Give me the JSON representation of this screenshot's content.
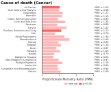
{
  "chart_data": {
    "type": "bar",
    "orientation": "horizontal",
    "title": "Cause of death (Cancer)",
    "x_label": "Proportionate Mortality Ratio (PMR)",
    "categories": [
      "All Cancer",
      "Oral Cavity and Pharynx",
      "Esophagus",
      "Stomach",
      "Colon, Rectum and Anus",
      "Liver and Bile Duct",
      "Pancreas",
      "Larynx",
      "Trachea, Bronchus and Lung",
      "Skin",
      "Other Respiratory",
      "Mesothelioma",
      "Kidney",
      "Bladder",
      "Brain",
      "Prostate",
      "Breast",
      "Hodgkin's Disease",
      "Non-Hodgkin's Lymphoma",
      "Multiple Myeloma",
      "Leukemia",
      "Lymphatic and Hematopoietic",
      "Others"
    ],
    "series": [
      {
        "name": "Non-sig",
        "color": "#ffb3b3",
        "values": [
          null,
          0.98,
          1.21,
          1.15,
          0.93,
          1.35,
          0.88,
          1.42,
          null,
          0.76,
          1.3,
          1.6,
          0.95,
          1.1,
          0.82,
          1.05,
          0.7,
          0.65,
          0.97,
          1.18,
          0.9,
          0.94,
          1.08
        ],
        "value_labels": [
          null,
          "PMR = 0.98",
          "PMR = 1.21",
          "PMR = 1.15",
          "PMR = 0.93",
          "PMR = 1.35",
          "PMR = 0.88",
          "PMR = 1.42",
          null,
          "PMR = 0.76",
          "PMR = 1.30",
          "PMR = 1.60",
          "PMR = 0.95",
          "PMR = 1.10",
          "PMR = 0.82",
          "PMR = 1.05",
          "PMR = 0.70",
          "PMR = 0.65",
          "PMR = 0.97",
          "PMR = 1.18",
          "PMR = 0.90",
          "PMR = 0.94",
          "PMR = 1.08"
        ]
      },
      {
        "name": "p<0.05",
        "color": "#ff6060",
        "values": [
          1.03,
          null,
          null,
          null,
          null,
          null,
          null,
          null,
          1.12,
          null,
          null,
          null,
          null,
          null,
          null,
          null,
          null,
          null,
          null,
          null,
          null,
          null,
          null
        ],
        "value_labels": [
          "PMR = 1.03",
          null,
          null,
          null,
          null,
          null,
          null,
          null,
          "PMR = 1.12",
          null,
          null,
          null,
          null,
          null,
          null,
          null,
          null,
          null,
          null,
          null,
          null,
          null,
          null
        ]
      }
    ],
    "xlim": [
      0,
      3
    ],
    "xticks": [
      0,
      1,
      2,
      3
    ],
    "grid": false,
    "legend": "bottom",
    "data_labels": true
  }
}
